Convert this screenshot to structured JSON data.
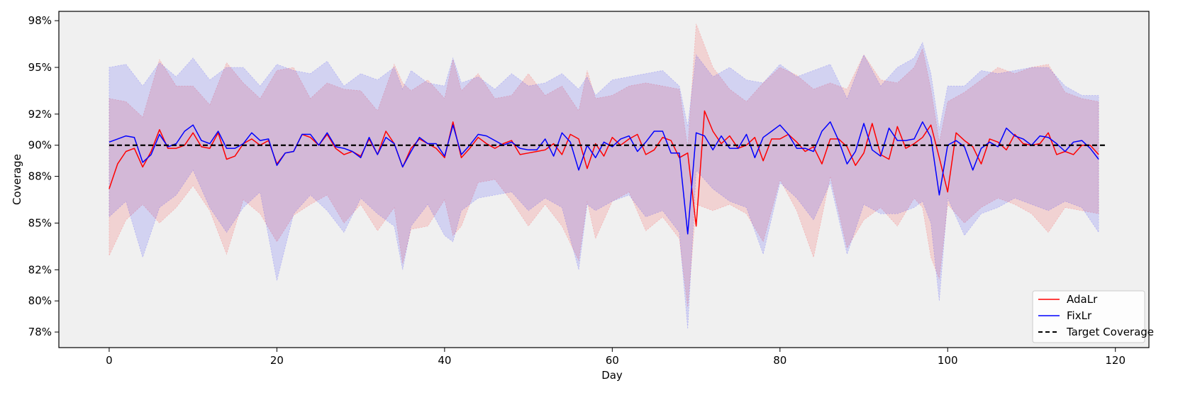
{
  "chart_data": {
    "type": "line",
    "title": "",
    "xlabel": "Day",
    "ylabel": "Coverage",
    "xlim": [
      -6,
      124
    ],
    "ylim": [
      77.0,
      98.6
    ],
    "xticks": [
      0,
      20,
      40,
      60,
      80,
      100,
      120
    ],
    "yticks": [
      78,
      80,
      82,
      85,
      88,
      90,
      92,
      95,
      98
    ],
    "ytick_labels": [
      "78%",
      "80%",
      "82%",
      "85%",
      "88%",
      "90%",
      "92%",
      "95%",
      "98%"
    ],
    "background": "#f0f0f0",
    "grid": false,
    "legend_position": "bottom-right",
    "target": {
      "name": "Target Coverage",
      "value": 90.0,
      "x_range": [
        0,
        119
      ],
      "color": "#000000",
      "dash": true
    },
    "bands": [
      {
        "series": "AdaLr",
        "color": "#ff0000",
        "x": [
          0,
          2,
          4,
          6,
          8,
          10,
          12,
          14,
          16,
          18,
          20,
          22,
          24,
          26,
          28,
          30,
          32,
          34,
          35,
          36,
          38,
          40,
          41,
          42,
          44,
          46,
          48,
          50,
          52,
          54,
          56,
          57,
          58,
          60,
          62,
          64,
          66,
          68,
          69,
          70,
          72,
          74,
          76,
          78,
          80,
          82,
          84,
          86,
          88,
          90,
          92,
          94,
          96,
          97,
          98,
          99,
          100,
          102,
          104,
          106,
          108,
          110,
          112,
          114,
          116,
          118
        ],
        "upper": [
          93.0,
          92.8,
          91.8,
          95.5,
          93.8,
          93.8,
          92.6,
          95.3,
          94.0,
          93.0,
          94.8,
          95.0,
          93.0,
          94.0,
          93.6,
          93.5,
          92.2,
          95.2,
          94.0,
          93.5,
          94.2,
          93.0,
          95.5,
          93.5,
          94.6,
          93.0,
          93.2,
          94.6,
          93.2,
          93.8,
          92.2,
          94.8,
          93.0,
          93.2,
          93.8,
          94.0,
          93.8,
          93.6,
          89.8,
          97.8,
          95.0,
          93.6,
          92.8,
          94.0,
          95.0,
          94.5,
          93.6,
          94.0,
          93.6,
          95.8,
          94.2,
          94.0,
          95.0,
          96.2,
          93.6,
          90.2,
          92.8,
          93.4,
          94.2,
          95.0,
          94.6,
          95.0,
          95.2,
          93.4,
          93.0,
          92.8
        ],
        "lower": [
          82.9,
          85.2,
          86.2,
          85.0,
          86.0,
          87.4,
          85.8,
          83.0,
          86.5,
          85.6,
          83.8,
          85.5,
          86.2,
          86.8,
          85.0,
          86.2,
          84.5,
          86.0,
          82.4,
          84.6,
          84.8,
          86.5,
          84.2,
          84.8,
          87.6,
          87.8,
          86.4,
          84.8,
          86.2,
          84.8,
          82.6,
          86.4,
          84.0,
          86.4,
          87.0,
          84.5,
          85.4,
          84.0,
          79.6,
          86.2,
          85.8,
          86.2,
          85.6,
          83.8,
          87.8,
          85.8,
          82.8,
          88.0,
          83.4,
          85.2,
          86.0,
          84.8,
          86.6,
          86.0,
          82.8,
          81.4,
          86.2,
          85.0,
          86.0,
          86.6,
          86.2,
          85.6,
          84.4,
          86.0,
          85.8,
          85.6
        ]
      },
      {
        "series": "FixLr",
        "color": "#0000ff",
        "x": [
          0,
          2,
          4,
          6,
          8,
          10,
          12,
          14,
          16,
          18,
          20,
          22,
          24,
          26,
          28,
          30,
          32,
          34,
          35,
          36,
          38,
          40,
          41,
          42,
          44,
          46,
          48,
          50,
          52,
          54,
          56,
          57,
          58,
          60,
          62,
          64,
          66,
          68,
          69,
          70,
          72,
          74,
          76,
          78,
          80,
          82,
          84,
          86,
          88,
          90,
          92,
          94,
          96,
          97,
          98,
          99,
          100,
          102,
          104,
          106,
          108,
          110,
          112,
          114,
          116,
          118
        ],
        "upper": [
          95.0,
          95.2,
          93.8,
          95.3,
          94.4,
          95.6,
          94.2,
          95.0,
          95.0,
          93.8,
          95.2,
          94.8,
          94.6,
          95.4,
          93.8,
          94.6,
          94.2,
          95.0,
          93.6,
          94.8,
          94.0,
          93.8,
          95.6,
          94.0,
          94.4,
          93.6,
          94.6,
          93.8,
          94.0,
          94.6,
          93.6,
          94.4,
          93.2,
          94.2,
          94.4,
          94.6,
          94.8,
          93.8,
          91.2,
          95.8,
          94.4,
          95.0,
          94.2,
          94.0,
          95.2,
          94.4,
          94.8,
          95.2,
          93.0,
          95.8,
          93.8,
          95.0,
          95.6,
          96.6,
          94.6,
          91.0,
          93.8,
          93.8,
          94.8,
          94.6,
          94.8,
          95.0,
          95.0,
          93.8,
          93.2,
          93.2
        ],
        "lower": [
          85.4,
          86.4,
          82.8,
          86.0,
          86.8,
          88.4,
          86.0,
          84.4,
          86.0,
          87.0,
          81.3,
          85.6,
          86.8,
          85.8,
          84.4,
          86.6,
          85.6,
          84.8,
          82.0,
          84.8,
          86.2,
          84.2,
          83.8,
          85.8,
          86.6,
          86.8,
          87.0,
          85.8,
          86.6,
          86.0,
          82.0,
          86.2,
          85.8,
          86.4,
          86.8,
          85.4,
          85.8,
          84.4,
          78.2,
          88.4,
          87.2,
          86.4,
          86.0,
          83.0,
          87.6,
          86.6,
          85.2,
          87.6,
          83.0,
          86.2,
          85.6,
          85.6,
          86.0,
          86.4,
          85.0,
          80.0,
          86.6,
          84.2,
          85.6,
          86.0,
          86.6,
          86.2,
          85.8,
          86.4,
          86.0,
          84.4
        ]
      }
    ],
    "series": [
      {
        "name": "AdaLr",
        "color": "#ff0000",
        "x": [
          0,
          1,
          2,
          3,
          4,
          5,
          6,
          7,
          8,
          9,
          10,
          11,
          12,
          13,
          14,
          15,
          16,
          17,
          18,
          19,
          20,
          21,
          22,
          23,
          24,
          25,
          26,
          27,
          28,
          29,
          30,
          31,
          32,
          33,
          34,
          35,
          36,
          37,
          38,
          39,
          40,
          41,
          42,
          43,
          44,
          45,
          46,
          47,
          48,
          49,
          50,
          51,
          52,
          53,
          54,
          55,
          56,
          57,
          58,
          59,
          60,
          61,
          62,
          63,
          64,
          65,
          66,
          67,
          68,
          69,
          70,
          71,
          72,
          73,
          74,
          75,
          76,
          77,
          78,
          79,
          80,
          81,
          82,
          83,
          84,
          85,
          86,
          87,
          88,
          89,
          90,
          91,
          92,
          93,
          94,
          95,
          96,
          97,
          98,
          99,
          100,
          101,
          102,
          103,
          104,
          105,
          106,
          107,
          108,
          109,
          110,
          111,
          112,
          113,
          114,
          115,
          116,
          117,
          118
        ],
        "values": [
          87.2,
          88.8,
          89.6,
          89.8,
          88.6,
          89.6,
          91.0,
          89.8,
          89.8,
          90.0,
          90.8,
          89.9,
          89.8,
          90.8,
          89.1,
          89.3,
          90.1,
          90.4,
          90.0,
          90.3,
          88.8,
          89.5,
          89.6,
          90.7,
          90.5,
          90.0,
          90.7,
          89.8,
          89.4,
          89.6,
          89.3,
          90.4,
          89.4,
          90.9,
          90.1,
          88.6,
          89.8,
          90.4,
          90.1,
          89.8,
          89.2,
          91.5,
          89.2,
          89.8,
          90.5,
          90.1,
          89.8,
          90.1,
          90.3,
          89.4,
          89.5,
          89.6,
          89.7,
          90.1,
          89.4,
          90.7,
          90.4,
          88.5,
          90.1,
          89.3,
          90.5,
          90.0,
          90.4,
          90.7,
          89.4,
          89.7,
          90.5,
          90.3,
          89.2,
          89.5,
          84.8,
          92.2,
          90.9,
          90.1,
          90.6,
          89.8,
          90.0,
          90.5,
          89.0,
          90.4,
          90.4,
          90.7,
          90.2,
          89.6,
          89.9,
          88.8,
          90.4,
          90.4,
          89.9,
          88.7,
          89.5,
          91.4,
          89.4,
          89.1,
          91.2,
          89.8,
          90.1,
          90.5,
          91.3,
          89.2,
          87.0,
          90.8,
          90.3,
          89.9,
          88.8,
          90.4,
          90.2,
          89.7,
          90.7,
          90.1,
          90.0,
          90.1,
          90.8,
          89.4,
          89.6,
          89.4,
          90.0,
          90.0,
          89.4
        ]
      },
      {
        "name": "FixLr",
        "color": "#0000ff",
        "x": [
          0,
          1,
          2,
          3,
          4,
          5,
          6,
          7,
          8,
          9,
          10,
          11,
          12,
          13,
          14,
          15,
          16,
          17,
          18,
          19,
          20,
          21,
          22,
          23,
          24,
          25,
          26,
          27,
          28,
          29,
          30,
          31,
          32,
          33,
          34,
          35,
          36,
          37,
          38,
          39,
          40,
          41,
          42,
          43,
          44,
          45,
          46,
          47,
          48,
          49,
          50,
          51,
          52,
          53,
          54,
          55,
          56,
          57,
          58,
          59,
          60,
          61,
          62,
          63,
          64,
          65,
          66,
          67,
          68,
          69,
          70,
          71,
          72,
          73,
          74,
          75,
          76,
          77,
          78,
          79,
          80,
          81,
          82,
          83,
          84,
          85,
          86,
          87,
          88,
          89,
          90,
          91,
          92,
          93,
          94,
          95,
          96,
          97,
          98,
          99,
          100,
          101,
          102,
          103,
          104,
          105,
          106,
          107,
          108,
          109,
          110,
          111,
          112,
          113,
          114,
          115,
          116,
          117,
          118
        ],
        "values": [
          90.2,
          90.4,
          90.6,
          90.5,
          88.9,
          89.4,
          90.7,
          89.9,
          90.1,
          90.9,
          91.3,
          90.3,
          90.1,
          90.9,
          89.8,
          89.8,
          90.1,
          90.8,
          90.3,
          90.4,
          88.7,
          89.5,
          89.6,
          90.7,
          90.7,
          90.0,
          90.8,
          89.9,
          89.8,
          89.6,
          89.2,
          90.5,
          89.4,
          90.5,
          90.1,
          88.6,
          89.6,
          90.5,
          90.1,
          90.1,
          89.3,
          91.3,
          89.4,
          90.0,
          90.7,
          90.6,
          90.3,
          90.0,
          90.2,
          89.8,
          89.7,
          89.7,
          90.4,
          89.3,
          90.8,
          90.2,
          88.4,
          90.0,
          89.2,
          90.2,
          89.9,
          90.4,
          90.6,
          89.6,
          90.2,
          90.9,
          90.9,
          89.5,
          89.5,
          84.3,
          90.8,
          90.6,
          89.7,
          90.6,
          89.8,
          89.8,
          90.7,
          89.2,
          90.5,
          90.9,
          91.3,
          90.7,
          89.8,
          89.8,
          89.6,
          90.9,
          91.5,
          90.3,
          88.8,
          89.6,
          91.4,
          89.7,
          89.3,
          91.1,
          90.3,
          90.3,
          90.4,
          91.5,
          90.5,
          86.8,
          90.0,
          90.3,
          89.9,
          88.4,
          89.8,
          90.2,
          89.9,
          91.1,
          90.6,
          90.4,
          90.0,
          90.6,
          90.5,
          90.1,
          89.6,
          90.2,
          90.3,
          89.8,
          89.1
        ]
      }
    ],
    "legend": [
      {
        "label": "AdaLr",
        "color": "#ff0000",
        "style": "solid"
      },
      {
        "label": "FixLr",
        "color": "#0000ff",
        "style": "solid"
      },
      {
        "label": "Target Coverage",
        "color": "#000000",
        "style": "dashed"
      }
    ]
  }
}
